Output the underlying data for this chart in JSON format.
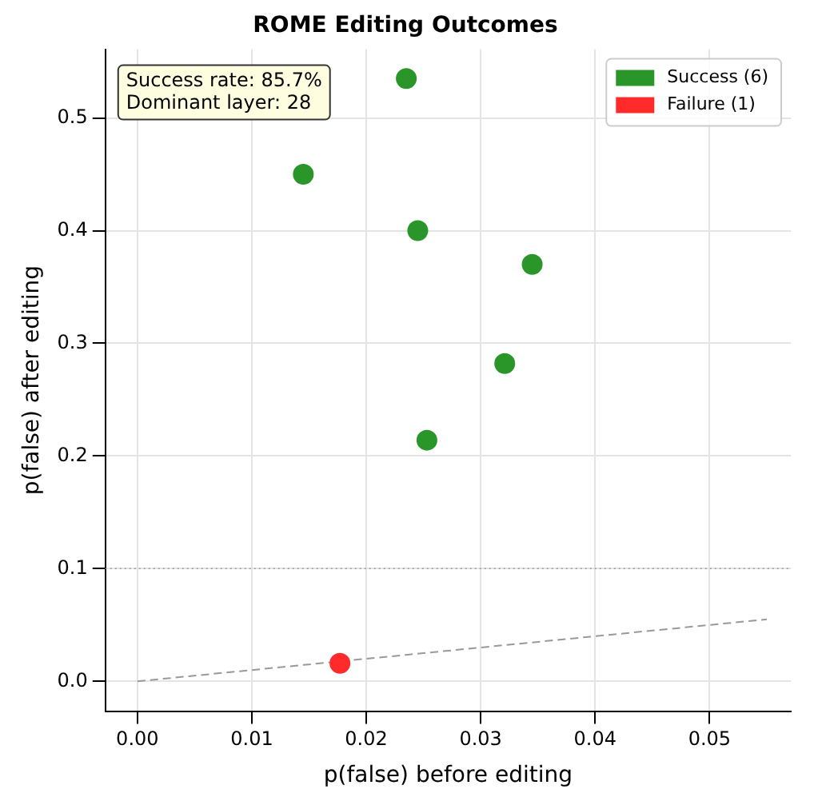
{
  "chart_data": {
    "type": "scatter",
    "title": "ROME Editing Outcomes",
    "xlabel": "p(false) before editing",
    "ylabel": "p(false) after editing",
    "xlim": [
      -0.0028,
      0.0571
    ],
    "ylim": [
      -0.0265,
      0.561
    ],
    "xticks": [
      {
        "value": 0,
        "label": "0.00"
      },
      {
        "value": 0.01,
        "label": "0.01"
      },
      {
        "value": 0.02,
        "label": "0.02"
      },
      {
        "value": 0.03,
        "label": "0.03"
      },
      {
        "value": 0.04,
        "label": "0.04"
      },
      {
        "value": 0.05,
        "label": "0.05"
      }
    ],
    "yticks": [
      {
        "value": 0,
        "label": "0.0"
      },
      {
        "value": 0.1,
        "label": "0.1"
      },
      {
        "value": 0.2,
        "label": "0.2"
      },
      {
        "value": 0.3,
        "label": "0.3"
      },
      {
        "value": 0.4,
        "label": "0.4"
      },
      {
        "value": 0.5,
        "label": "0.5"
      }
    ],
    "grid": true,
    "legend": "top right",
    "marker": "circle",
    "series": [
      {
        "name": "Success (6)",
        "color": "#2a962a",
        "x": [
          0.0145,
          0.0235,
          0.0245,
          0.0345,
          0.0321,
          0.0253
        ],
        "values": [
          0.45,
          0.535,
          0.4,
          0.37,
          0.282,
          0.214
        ]
      },
      {
        "name": "Failure (1)",
        "color": "#ff2a2a",
        "x": [
          0.0177
        ],
        "values": [
          0.016
        ]
      },
      {
        "type": "line",
        "color": "#999999",
        "line_style": "dashed",
        "marker": "none",
        "x": [
          0,
          0.055
        ],
        "values": [
          0,
          0.055
        ]
      }
    ],
    "ref_lines": [
      {
        "axis": "y",
        "value": 0.1,
        "color": "#999999",
        "line_style": "dotted"
      }
    ],
    "annotations": [
      "Success rate: 85.7%",
      "Dominant layer: 28"
    ]
  }
}
